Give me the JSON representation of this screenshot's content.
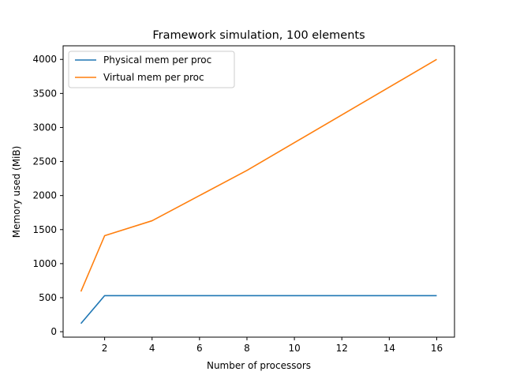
{
  "chart_data": {
    "type": "line",
    "title": "Framework simulation, 100 elements",
    "xlabel": "Number of processors",
    "ylabel": "Memory used (MiB)",
    "x": [
      1,
      2,
      4,
      8,
      16
    ],
    "xlim": [
      0.25,
      16.75
    ],
    "ylim": [
      -80,
      4200
    ],
    "xticks": [
      2,
      4,
      6,
      8,
      10,
      12,
      14,
      16
    ],
    "yticks": [
      0,
      500,
      1000,
      1500,
      2000,
      2500,
      3000,
      3500,
      4000
    ],
    "grid": false,
    "legend_position": "upper-left",
    "series": [
      {
        "name": "Physical mem per proc",
        "color": "#1f77b4",
        "values": [
          120,
          530,
          530,
          530,
          530
        ]
      },
      {
        "name": "Virtual mem per proc",
        "color": "#ff7f0e",
        "values": [
          590,
          1410,
          1630,
          2370,
          4000
        ]
      }
    ]
  }
}
